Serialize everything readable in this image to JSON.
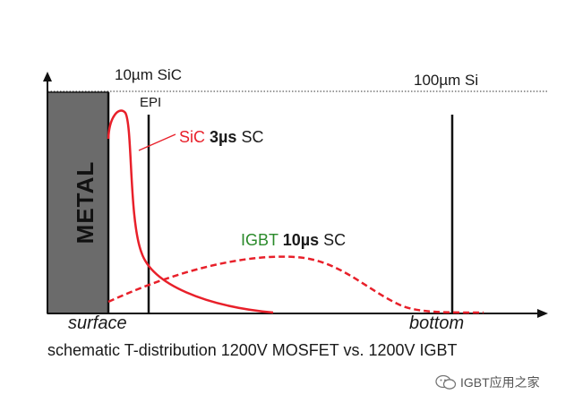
{
  "diagram": {
    "top_left_label": "10µm SiC",
    "top_right_label": "100µm Si",
    "epi_label": "EPI",
    "metal_label": "METAL",
    "sic_curve": {
      "prefix": "SiC",
      "bold": "3µs",
      "suffix": "SC"
    },
    "igbt_curve": {
      "prefix": "IGBT",
      "bold": "10µs",
      "suffix": "SC"
    },
    "x_left_label": "surface",
    "x_right_label": "bottom",
    "caption": "schematic T-distribution 1200V MOSFET vs. 1200V IGBT"
  },
  "watermark": {
    "text": "IGBT应用之家"
  },
  "colors": {
    "sic_red": "#e8202a",
    "igbt_green": "#2a8a2a",
    "metal_gray": "#6b6b6b"
  }
}
